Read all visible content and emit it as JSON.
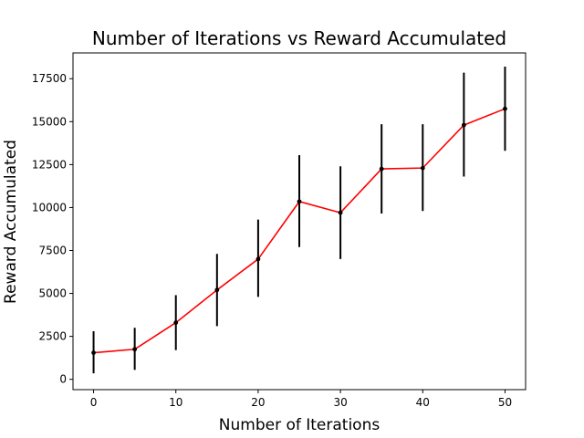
{
  "chart_data": {
    "type": "line",
    "title": "Number of Iterations vs Reward Accumulated",
    "xlabel": "Number of Iterations",
    "ylabel": "Reward Accumulated",
    "xlim": [
      -2.5,
      52.5
    ],
    "ylim": [
      -600,
      19000
    ],
    "xticks": [
      0,
      10,
      20,
      30,
      40,
      50
    ],
    "yticks": [
      0,
      2500,
      5000,
      7500,
      10000,
      12500,
      15000,
      17500
    ],
    "grid": false,
    "series": [
      {
        "color": "#ff0000",
        "marker_color": "#000000",
        "errorbar_color": "#000000",
        "points": [
          {
            "x": 0,
            "y": 1550,
            "err_low": 350,
            "err_high": 2800
          },
          {
            "x": 5,
            "y": 1750,
            "err_low": 550,
            "err_high": 3000
          },
          {
            "x": 10,
            "y": 3300,
            "err_low": 1700,
            "err_high": 4900
          },
          {
            "x": 15,
            "y": 5200,
            "err_low": 3100,
            "err_high": 7300
          },
          {
            "x": 20,
            "y": 7000,
            "err_low": 4800,
            "err_high": 9300
          },
          {
            "x": 25,
            "y": 10350,
            "err_low": 7700,
            "err_high": 13050
          },
          {
            "x": 30,
            "y": 9700,
            "err_low": 7000,
            "err_high": 12400
          },
          {
            "x": 35,
            "y": 12250,
            "err_low": 9650,
            "err_high": 14850
          },
          {
            "x": 40,
            "y": 12300,
            "err_low": 9800,
            "err_high": 14850
          },
          {
            "x": 45,
            "y": 14800,
            "err_low": 11800,
            "err_high": 17850
          },
          {
            "x": 50,
            "y": 15750,
            "err_low": 13300,
            "err_high": 18200
          }
        ]
      }
    ]
  }
}
